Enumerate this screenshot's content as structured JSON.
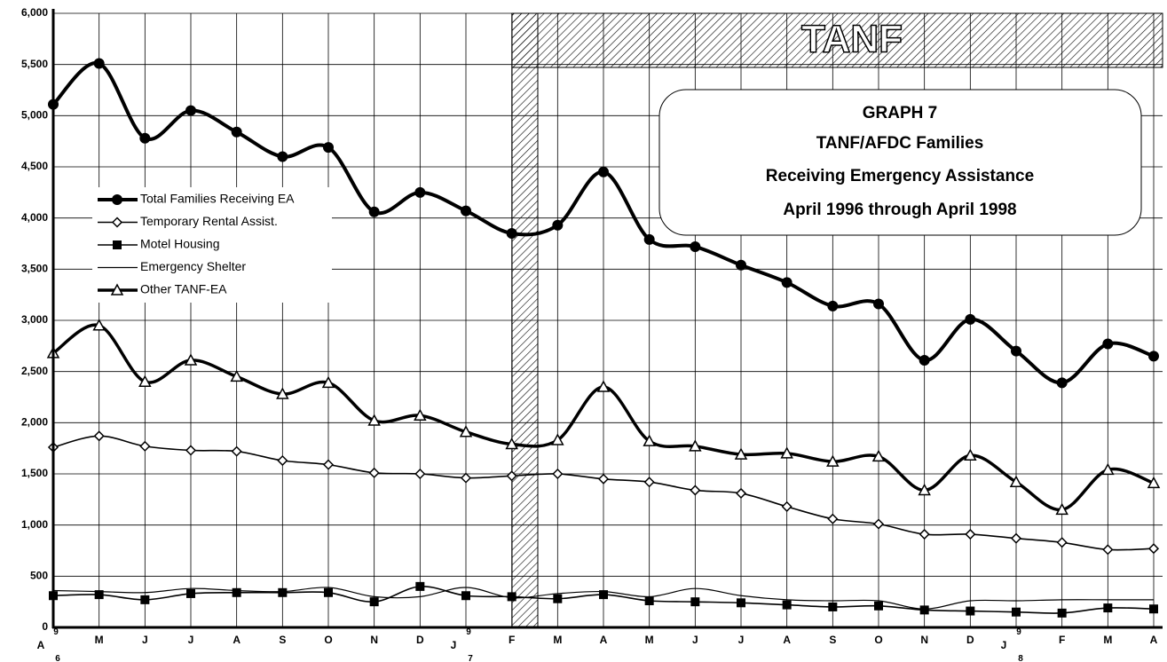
{
  "chart_data": {
    "type": "line",
    "title_lines": [
      "GRAPH 7",
      "TANF/AFDC Families",
      "Receiving Emergency Assistance",
      "April 1996 through April 1998"
    ],
    "region_label": "TANF",
    "categories": [
      "A",
      "M",
      "J",
      "J",
      "A",
      "S",
      "O",
      "N",
      "D",
      "J",
      "F",
      "M",
      "A",
      "M",
      "J",
      "J",
      "A",
      "S",
      "O",
      "N",
      "D",
      "J",
      "F",
      "M",
      "A"
    ],
    "year_labels": [
      "96",
      null,
      null,
      null,
      null,
      null,
      null,
      null,
      null,
      "97",
      null,
      null,
      null,
      null,
      null,
      null,
      null,
      null,
      null,
      null,
      null,
      "98",
      null,
      null,
      null
    ],
    "series": [
      {
        "name": "Total Families Receiving EA",
        "color": "#000000",
        "marker": "circle",
        "values": [
          5110,
          5510,
          4780,
          5050,
          4840,
          4600,
          4690,
          4060,
          4250,
          4070,
          3850,
          3930,
          4450,
          3790,
          3720,
          3540,
          3370,
          3140,
          3160,
          2610,
          3010,
          2700,
          2390,
          2770,
          2650
        ]
      },
      {
        "name": "Temporary Rental Assist.",
        "color": "#000000",
        "marker": "diamond",
        "values": [
          1760,
          1870,
          1770,
          1730,
          1720,
          1630,
          1590,
          1510,
          1500,
          1460,
          1480,
          1500,
          1450,
          1420,
          1340,
          1310,
          1180,
          1060,
          1010,
          910,
          910,
          870,
          830,
          760,
          770
        ]
      },
      {
        "name": "Motel  Housing",
        "color": "#000000",
        "marker": "square",
        "values": [
          310,
          320,
          270,
          330,
          340,
          340,
          340,
          250,
          400,
          310,
          300,
          280,
          320,
          260,
          250,
          240,
          220,
          200,
          210,
          170,
          160,
          150,
          140,
          190,
          180
        ]
      },
      {
        "name": "Emergency Shelter",
        "color": "#000000",
        "marker": "none",
        "values": [
          360,
          350,
          340,
          380,
          360,
          350,
          390,
          300,
          300,
          390,
          290,
          330,
          350,
          300,
          380,
          310,
          270,
          260,
          260,
          180,
          260,
          260,
          270,
          270,
          270
        ]
      },
      {
        "name": "Other TANF-EA",
        "color": "#000000",
        "marker": "triangle",
        "values": [
          2680,
          2950,
          2400,
          2610,
          2450,
          2280,
          2390,
          2020,
          2070,
          1910,
          1790,
          1830,
          2350,
          1820,
          1770,
          1690,
          1700,
          1620,
          1670,
          1340,
          1680,
          1420,
          1150,
          1540,
          1410
        ]
      }
    ],
    "ylim": [
      0,
      6000
    ],
    "yticks": [
      0,
      500,
      {
        "value": 1000,
        "label": "1,000"
      },
      {
        "value": 1500,
        "label": "1,500"
      },
      {
        "value": 2000,
        "label": "2,000"
      },
      {
        "value": 2500,
        "label": "2,500"
      },
      {
        "value": 3000,
        "label": "3,000"
      },
      {
        "value": 3500,
        "label": "3,500"
      },
      {
        "value": 4000,
        "label": "4,000"
      },
      {
        "value": 4500,
        "label": "4,500"
      },
      {
        "value": 5000,
        "label": "5,000"
      },
      {
        "value": 5500,
        "label": "5,500"
      },
      {
        "value": 6000,
        "label": "6,000"
      }
    ],
    "grid": true
  }
}
